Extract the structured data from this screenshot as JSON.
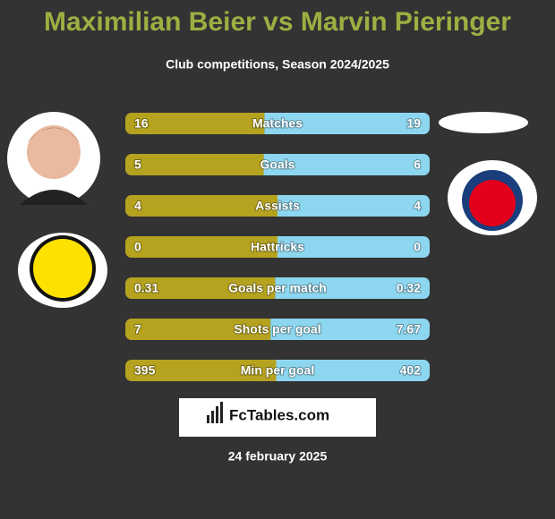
{
  "chart_data": {
    "type": "comparison",
    "title": "Maximilian Beier vs Marvin Pieringer",
    "subtitle": "Club competitions, Season 2024/2025",
    "categories": [
      "Matches",
      "Goals",
      "Assists",
      "Hattricks",
      "Goals per match",
      "Shots per goal",
      "Min per goal"
    ],
    "series": [
      {
        "color": "#b5a21f",
        "values": [
          16,
          5,
          4,
          0,
          0.31,
          7,
          395
        ]
      },
      {
        "color": "#8dd6ef",
        "values": [
          19,
          6,
          4,
          0,
          0.32,
          7.67,
          402
        ]
      }
    ],
    "brand": "FcTables.com",
    "date": "24 february 2025"
  }
}
